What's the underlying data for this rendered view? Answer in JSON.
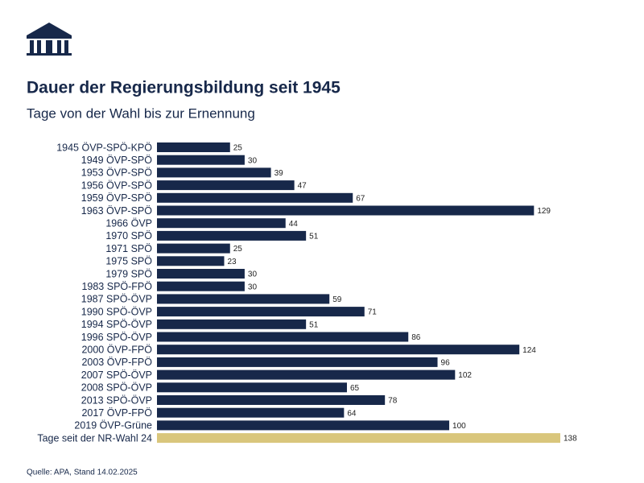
{
  "chart_data": {
    "type": "bar",
    "orientation": "horizontal",
    "title": "Dauer der Regierungsbildung seit 1945",
    "subtitle": "Tage von der Wahl bis zur Ernennung",
    "source": "Quelle: APA, Stand 14.02.2025",
    "categories": [
      "1945 ÖVP-SPÖ-KPÖ",
      "1949 ÖVP-SPÖ",
      "1953 ÖVP-SPÖ",
      "1956 ÖVP-SPÖ",
      "1959 ÖVP-SPÖ",
      "1963 ÖVP-SPÖ",
      "1966 ÖVP",
      "1970 SPÖ",
      "1971 SPÖ",
      "1975 SPÖ",
      "1979 SPÖ",
      "1983 SPÖ-FPÖ",
      "1987 SPÖ-ÖVP",
      "1990 SPÖ-ÖVP",
      "1994 SPÖ-ÖVP",
      "1996 SPÖ-ÖVP",
      "2000 ÖVP-FPÖ",
      "2003 ÖVP-FPÖ",
      "2007 SPÖ-ÖVP",
      "2008 SPÖ-ÖVP",
      "2013 SPÖ-ÖVP",
      "2017 ÖVP-FPÖ",
      "2019 ÖVP-Grüne",
      "Tage seit der NR-Wahl 24"
    ],
    "values": [
      25,
      30,
      39,
      47,
      67,
      129,
      44,
      51,
      25,
      23,
      30,
      30,
      59,
      71,
      51,
      86,
      124,
      96,
      102,
      65,
      78,
      64,
      100,
      138
    ],
    "colors": [
      "#17284a",
      "#17284a",
      "#17284a",
      "#17284a",
      "#17284a",
      "#17284a",
      "#17284a",
      "#17284a",
      "#17284a",
      "#17284a",
      "#17284a",
      "#17284a",
      "#17284a",
      "#17284a",
      "#17284a",
      "#17284a",
      "#17284a",
      "#17284a",
      "#17284a",
      "#17284a",
      "#17284a",
      "#17284a",
      "#17284a",
      "#d9c67c"
    ]
  }
}
